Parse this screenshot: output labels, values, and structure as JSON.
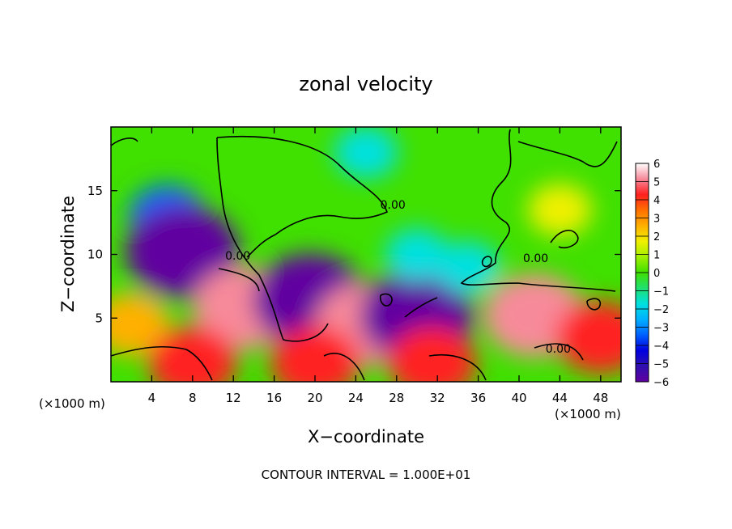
{
  "chart_data": {
    "type": "heatmap",
    "title": "zonal velocity",
    "xlabel": "X−coordinate",
    "ylabel": "Z−coordinate",
    "x_unit_left": "(×1000 m)",
    "x_unit_right": "(×1000 m)",
    "xlim": [
      0,
      50
    ],
    "ylim": [
      0,
      20
    ],
    "x_ticks": [
      4,
      8,
      12,
      16,
      20,
      24,
      28,
      32,
      36,
      40,
      44,
      48
    ],
    "x_tick_labels": [
      "4",
      "8",
      "12",
      "16",
      "20",
      "24",
      "28",
      "32",
      "36",
      "40",
      "44",
      "48"
    ],
    "y_ticks": [
      5,
      10,
      15
    ],
    "y_tick_labels": [
      "5",
      "10",
      "15"
    ],
    "colorbar": {
      "min": -6,
      "max": 6,
      "tick_labels": [
        "6",
        "5",
        "4",
        "3",
        "2",
        "1",
        "0",
        "−1",
        "−2",
        "−3",
        "−4",
        "−5",
        "−6"
      ],
      "colors": [
        "#ffffff",
        "#f78a9a",
        "#ff2020",
        "#ff7000",
        "#ffb000",
        "#f0f000",
        "#a0f000",
        "#40e000",
        "#20e070",
        "#00e0e0",
        "#00b0ff",
        "#0060ff",
        "#0000e0",
        "#3010b0",
        "#6000a0"
      ]
    },
    "contour_labels": [
      "0.00",
      "0.00",
      "0.00",
      "0.00"
    ],
    "contour_label_positions": [
      [
        11.2,
        9.6
      ],
      [
        26.4,
        13.6
      ],
      [
        40.4,
        9.4
      ],
      [
        42.6,
        2.3
      ]
    ],
    "features": [
      {
        "x": 5.5,
        "z": 13,
        "value": -3
      },
      {
        "x": 7,
        "z": 10.2,
        "value": -6
      },
      {
        "x": 13,
        "z": 5.8,
        "value": 5
      },
      {
        "x": 19.5,
        "z": 6.4,
        "value": -6
      },
      {
        "x": 25,
        "z": 4.5,
        "value": 5
      },
      {
        "x": 30,
        "z": 5.2,
        "value": -6
      },
      {
        "x": 31.5,
        "z": 1.5,
        "value": 4
      },
      {
        "x": 41.5,
        "z": 5.2,
        "value": 5
      },
      {
        "x": 48,
        "z": 3.5,
        "value": 4
      },
      {
        "x": 2,
        "z": 4.5,
        "value": 3
      },
      {
        "x": 8,
        "z": 1.5,
        "value": 4
      },
      {
        "x": 20,
        "z": 1.5,
        "value": 4
      },
      {
        "x": 25,
        "z": 18,
        "value": -2
      },
      {
        "x": 30,
        "z": 10,
        "value": -2
      },
      {
        "x": 44,
        "z": 13.5,
        "value": 2
      },
      {
        "x": 35,
        "z": 9,
        "value": -2
      }
    ],
    "grid": false
  },
  "footer": {
    "contour_interval": "CONTOUR INTERVAL = 1.000E+01"
  }
}
